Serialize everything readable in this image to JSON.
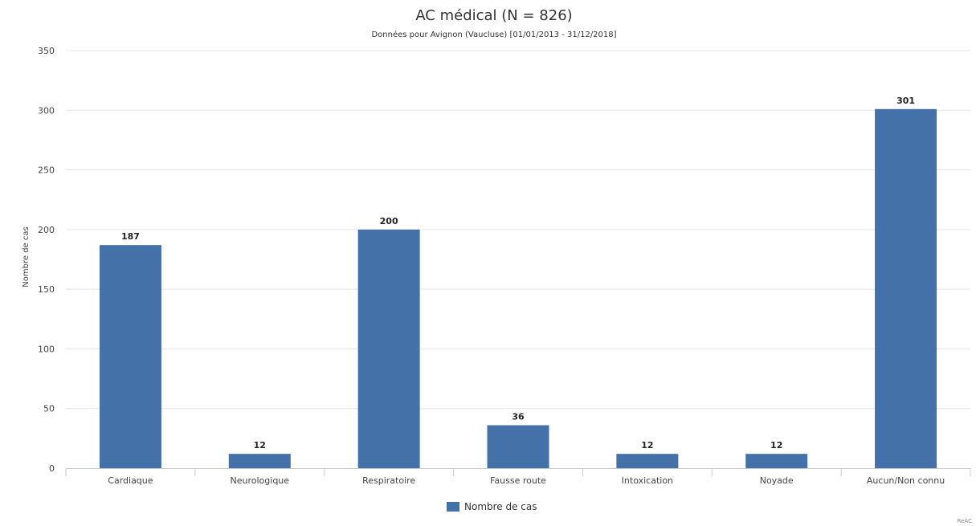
{
  "chart_data": {
    "type": "bar",
    "title": "AC médical (N = 826)",
    "subtitle": "Données pour Avignon (Vaucluse) [01/01/2013 - 31/12/2018]",
    "ylabel": "Nombre de cas",
    "xlabel": "",
    "categories": [
      "Cardiaque",
      "Neurologique",
      "Respiratoire",
      "Fausse route",
      "Intoxication",
      "Noyade",
      "Aucun/Non connu"
    ],
    "series": [
      {
        "name": "Nombre de cas",
        "values": [
          187,
          12,
          200,
          36,
          12,
          12,
          301
        ],
        "color": "#4472a8"
      }
    ],
    "ylim": [
      0,
      350
    ],
    "yticks": [
      0,
      50,
      100,
      150,
      200,
      250,
      300,
      350
    ],
    "grid": true,
    "legend": "bottom-center",
    "credit": "ReAC"
  }
}
